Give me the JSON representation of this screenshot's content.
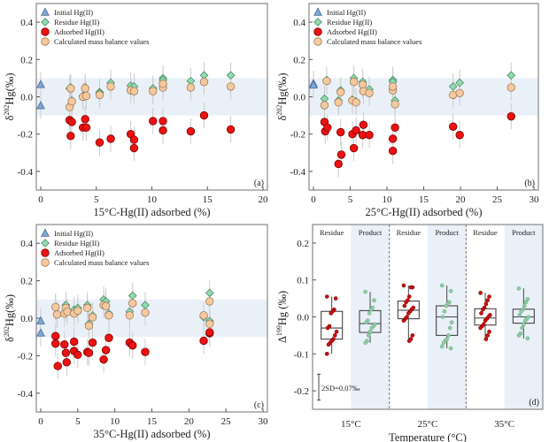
{
  "colors": {
    "initial": "#7ea6d6",
    "residue": "#8fdcae",
    "adsorbed": "#ee1111",
    "calculated": "#f7c89b",
    "band": "#eaf0f8",
    "red_dot": "#cc1111",
    "green_dot": "#6fae88"
  },
  "chart_data": [
    {
      "type": "scatter",
      "panel": "(a)",
      "xlabel": "15°C-Hg(II) adsorbed (%)",
      "ylabel": "δ202Hg(‰)",
      "xlim": [
        0,
        20
      ],
      "ylim": [
        -0.5,
        0.5
      ],
      "xticks": [
        "0",
        "5",
        "10",
        "15",
        "20"
      ],
      "yticks": [
        "-0.4",
        "-0.2",
        "0.0",
        "0.2",
        "0.4"
      ],
      "band": [
        -0.1,
        0.1
      ],
      "legend": [
        "Initial Hg(II)",
        "Residue Hg(II)",
        "Adsorbed Hg(II)",
        "Calculated mass balance values"
      ],
      "series": [
        {
          "name": "Initial Hg(II)",
          "points": [
            [
              0,
              0.065
            ],
            [
              0,
              -0.048
            ]
          ]
        },
        {
          "name": "Residue Hg(II)",
          "points": [
            [
              2.6,
              0.045
            ],
            [
              2.7,
              0.05
            ],
            [
              2.8,
              -0.02
            ],
            [
              3.8,
              0.005
            ],
            [
              4.0,
              0.05
            ],
            [
              4.1,
              0.01
            ],
            [
              5.3,
              0.025
            ],
            [
              5.3,
              0.02
            ],
            [
              6.3,
              0.075
            ],
            [
              8.1,
              0.06
            ],
            [
              8.4,
              0.055
            ],
            [
              10.1,
              0.045
            ],
            [
              11,
              0.1
            ],
            [
              11,
              0.09
            ],
            [
              13.5,
              0.085
            ],
            [
              14.7,
              0.115
            ],
            [
              17.1,
              0.115
            ]
          ]
        },
        {
          "name": "Adsorbed Hg(II)",
          "points": [
            [
              2.6,
              -0.125
            ],
            [
              2.7,
              -0.21
            ],
            [
              2.8,
              -0.135
            ],
            [
              3.8,
              -0.165
            ],
            [
              4.0,
              -0.12
            ],
            [
              4.1,
              -0.165
            ],
            [
              5.3,
              -0.245
            ],
            [
              6.3,
              -0.225
            ],
            [
              8.1,
              -0.2
            ],
            [
              8.4,
              -0.23
            ],
            [
              8.4,
              -0.275
            ],
            [
              10.1,
              -0.13
            ],
            [
              11,
              -0.13
            ],
            [
              11,
              -0.18
            ],
            [
              13.5,
              -0.185
            ],
            [
              14.7,
              -0.1
            ],
            [
              17.1,
              -0.175
            ]
          ]
        },
        {
          "name": "Calculated mass balance values",
          "points": [
            [
              2.6,
              -0.055
            ],
            [
              2.7,
              0.045
            ],
            [
              2.8,
              -0.025
            ],
            [
              3.8,
              0.0
            ],
            [
              4.0,
              0.045
            ],
            [
              4.1,
              0.005
            ],
            [
              5.3,
              0.01
            ],
            [
              6.3,
              0.055
            ],
            [
              8.1,
              0.035
            ],
            [
              8.4,
              0.03
            ],
            [
              10.1,
              0.03
            ],
            [
              11,
              0.05
            ],
            [
              11,
              0.07
            ],
            [
              13.5,
              0.05
            ],
            [
              14.7,
              0.08
            ],
            [
              17.1,
              0.055
            ]
          ]
        }
      ]
    },
    {
      "type": "scatter",
      "panel": "(b)",
      "xlabel": "25°C-Hg(II) adsorbed (%)",
      "ylabel": "δ202Hg(‰)",
      "xlim": [
        0,
        30
      ],
      "ylim": [
        -0.5,
        0.5
      ],
      "xticks": [
        "0",
        "5",
        "10",
        "15",
        "20",
        "25",
        "30"
      ],
      "yticks": [
        "-0.4",
        "-0.2",
        "0.0",
        "0.2",
        "0.4"
      ],
      "band": [
        -0.1,
        0.1
      ],
      "legend": [
        "Initial Hg(II)",
        "Residue Hg(II)",
        "Adsorbed Hg(II)",
        "Calculated mass balance values"
      ],
      "series": [
        {
          "name": "Initial Hg(II)",
          "points": [
            [
              0,
              0.07
            ],
            [
              0,
              0.062
            ]
          ]
        },
        {
          "name": "Residue Hg(II)",
          "points": [
            [
              1.5,
              -0.01
            ],
            [
              1.8,
              0.09
            ],
            [
              3.4,
              -0.02
            ],
            [
              3.7,
              0.035
            ],
            [
              5.3,
              -0.015
            ],
            [
              5.5,
              0.1
            ],
            [
              5.8,
              -0.025
            ],
            [
              6.7,
              0.08
            ],
            [
              7.6,
              0.04
            ],
            [
              10.8,
              0.09
            ],
            [
              10.8,
              0.08
            ],
            [
              11.1,
              -0.02
            ],
            [
              19,
              0.055
            ],
            [
              19.9,
              0.075
            ],
            [
              26.9,
              0.115
            ]
          ]
        },
        {
          "name": "Adsorbed Hg(II)",
          "points": [
            [
              1.5,
              -0.135
            ],
            [
              1.6,
              -0.185
            ],
            [
              1.9,
              -0.165
            ],
            [
              3.4,
              -0.36
            ],
            [
              3.7,
              -0.19
            ],
            [
              3.8,
              -0.31
            ],
            [
              5.3,
              -0.2
            ],
            [
              5.5,
              -0.275
            ],
            [
              5.8,
              -0.18
            ],
            [
              6.7,
              -0.205
            ],
            [
              6.8,
              -0.15
            ],
            [
              7.6,
              -0.205
            ],
            [
              10.8,
              -0.225
            ],
            [
              10.8,
              -0.29
            ],
            [
              11.1,
              -0.165
            ],
            [
              19,
              -0.16
            ],
            [
              19.9,
              -0.205
            ],
            [
              26.9,
              -0.105
            ]
          ]
        },
        {
          "name": "Calculated mass balance values",
          "points": [
            [
              1.5,
              -0.045
            ],
            [
              1.8,
              0.085
            ],
            [
              3.4,
              -0.03
            ],
            [
              3.7,
              0.025
            ],
            [
              5.3,
              -0.02
            ],
            [
              5.5,
              0.08
            ],
            [
              5.8,
              -0.03
            ],
            [
              6.7,
              0.065
            ],
            [
              6.8,
              0.03
            ],
            [
              7.6,
              0.02
            ],
            [
              10.8,
              0.035
            ],
            [
              10.8,
              0.055
            ],
            [
              11.1,
              -0.04
            ],
            [
              19,
              0.01
            ],
            [
              19.9,
              0.02
            ],
            [
              26.9,
              0.05
            ]
          ]
        }
      ]
    },
    {
      "type": "scatter",
      "panel": "(c)",
      "xlabel": "35°C-Hg(II) adsorbed (%)",
      "ylabel": "δ202Hg(‰)",
      "xlim": [
        0,
        30
      ],
      "ylim": [
        -0.5,
        0.5
      ],
      "xticks": [
        "0",
        "5",
        "10",
        "15",
        "20",
        "25",
        "30"
      ],
      "yticks": [
        "-0.4",
        "-0.2",
        "0.0",
        "0.2",
        "0.4"
      ],
      "band": [
        -0.1,
        0.1
      ],
      "legend": [
        "Initial Hg(II)",
        "Residue Hg(II)",
        "Adsorbed Hg(II)",
        "Calculated mass balance values"
      ],
      "series": [
        {
          "name": "Initial Hg(II)",
          "points": [
            [
              0,
              -0.015
            ],
            [
              0,
              -0.08
            ]
          ]
        },
        {
          "name": "Residue Hg(II)",
          "points": [
            [
              2,
              0.06
            ],
            [
              2.2,
              0.02
            ],
            [
              3.4,
              0.07
            ],
            [
              4.5,
              0.045
            ],
            [
              5,
              0.055
            ],
            [
              6.3,
              0.07
            ],
            [
              6.5,
              -0.03
            ],
            [
              7,
              0.015
            ],
            [
              8.5,
              0.1
            ],
            [
              8.8,
              0.09
            ],
            [
              9.2,
              0.025
            ],
            [
              12,
              0.035
            ],
            [
              12.4,
              0.12
            ],
            [
              14.1,
              0.07
            ],
            [
              22,
              0.005
            ],
            [
              22.8,
              0.135
            ],
            [
              22.8,
              -0.015
            ]
          ]
        },
        {
          "name": "Adsorbed Hg(II)",
          "points": [
            [
              2,
              -0.095
            ],
            [
              2,
              -0.135
            ],
            [
              2.3,
              -0.255
            ],
            [
              3.2,
              -0.14
            ],
            [
              3.4,
              -0.185
            ],
            [
              3.5,
              -0.235
            ],
            [
              4.5,
              -0.125
            ],
            [
              4.5,
              -0.175
            ],
            [
              5,
              -0.195
            ],
            [
              6.3,
              -0.18
            ],
            [
              6.5,
              -0.185
            ],
            [
              7,
              -0.13
            ],
            [
              8.5,
              -0.22
            ],
            [
              8.8,
              -0.17
            ],
            [
              9.2,
              -0.105
            ],
            [
              12,
              -0.13
            ],
            [
              12.4,
              -0.145
            ],
            [
              14.1,
              -0.18
            ],
            [
              22,
              -0.12
            ],
            [
              22.8,
              -0.08
            ],
            [
              22.8,
              -0.075
            ]
          ]
        },
        {
          "name": "Calculated mass balance values",
          "points": [
            [
              2,
              0.06
            ],
            [
              2.2,
              0.02
            ],
            [
              3.2,
              0.025
            ],
            [
              3.4,
              0.055
            ],
            [
              3.6,
              0.035
            ],
            [
              4.5,
              0.025
            ],
            [
              5,
              0.04
            ],
            [
              6.3,
              0.055
            ],
            [
              6.5,
              -0.04
            ],
            [
              7,
              0.005
            ],
            [
              8.5,
              0.07
            ],
            [
              8.8,
              0.065
            ],
            [
              9.2,
              0.015
            ],
            [
              12,
              0.015
            ],
            [
              12.4,
              0.08
            ],
            [
              14.1,
              0.03
            ],
            [
              22,
              0.015
            ],
            [
              22.8,
              0.09
            ],
            [
              22.8,
              -0.03
            ]
          ]
        }
      ]
    },
    {
      "type": "box",
      "panel": "(d)",
      "xlabel": "Temperature (°C)",
      "ylabel": "Δ199Hg (‰)",
      "ylim": [
        -0.25,
        0.25
      ],
      "yticks": [
        "-0.2",
        "-0.1",
        "0.0",
        "0.1",
        "0.2"
      ],
      "categories": [
        "15°C",
        "25°C",
        "35°C"
      ],
      "group_labels": [
        "Residue",
        "Product"
      ],
      "annotation": "2SD=0.07‰",
      "boxes": [
        {
          "temp": "15°C",
          "group": "Residue",
          "q1": -0.06,
          "median": -0.03,
          "q3": 0.015,
          "min": -0.1,
          "max": 0.055,
          "points": [
            0.055,
            0.05,
            0.02,
            0.015,
            0.01,
            -0.025,
            -0.03,
            -0.04,
            -0.05,
            -0.06,
            -0.065,
            -0.07,
            -0.075,
            -0.1
          ]
        },
        {
          "temp": "15°C",
          "group": "Product",
          "q1": -0.042,
          "median": -0.018,
          "q3": 0.017,
          "min": -0.07,
          "max": 0.068,
          "points": [
            0.068,
            0.045,
            0.025,
            0.02,
            0.01,
            -0.01,
            -0.015,
            -0.02,
            -0.025,
            -0.03,
            -0.04,
            -0.05,
            -0.065,
            -0.07
          ]
        },
        {
          "temp": "25°C",
          "group": "Residue",
          "q1": -0.005,
          "median": 0.018,
          "q3": 0.043,
          "min": -0.065,
          "max": 0.085,
          "points": [
            0.085,
            0.08,
            0.08,
            0.055,
            0.045,
            0.04,
            0.03,
            0.025,
            0.02,
            0.015,
            0.01,
            0.0,
            -0.005,
            -0.01,
            -0.05,
            -0.06,
            -0.065
          ]
        },
        {
          "temp": "25°C",
          "group": "Product",
          "q1": -0.05,
          "median": 0.0,
          "q3": 0.03,
          "min": -0.085,
          "max": 0.085,
          "points": [
            0.085,
            0.07,
            0.04,
            0.035,
            0.03,
            0.015,
            0.0,
            -0.015,
            -0.03,
            -0.05,
            -0.06,
            -0.065,
            -0.07,
            -0.08,
            -0.085
          ]
        },
        {
          "temp": "35°C",
          "group": "Residue",
          "q1": -0.022,
          "median": -0.003,
          "q3": 0.022,
          "min": -0.06,
          "max": 0.065,
          "points": [
            0.065,
            0.055,
            0.045,
            0.035,
            0.025,
            0.02,
            0.01,
            0.005,
            0.0,
            -0.005,
            -0.01,
            -0.02,
            -0.025,
            -0.03,
            -0.04,
            -0.05,
            -0.06
          ]
        },
        {
          "temp": "35°C",
          "group": "Product",
          "q1": -0.017,
          "median": 0.0,
          "q3": 0.021,
          "min": -0.058,
          "max": 0.077,
          "points": [
            0.077,
            0.048,
            0.04,
            0.03,
            0.02,
            0.015,
            0.005,
            0.0,
            -0.005,
            -0.01,
            -0.02,
            -0.03,
            -0.045,
            -0.05,
            -0.058
          ]
        }
      ]
    }
  ]
}
